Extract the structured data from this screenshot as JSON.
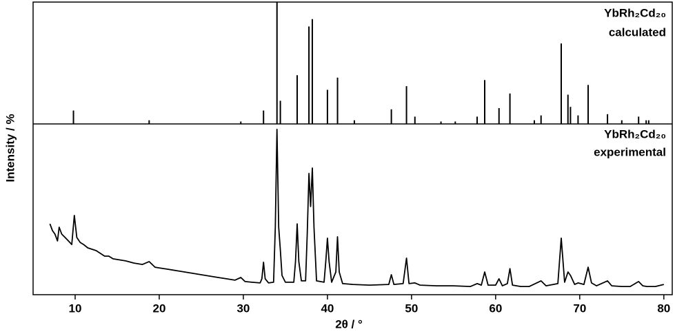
{
  "chart_data": [
    {
      "type": "stem",
      "ylabel": "Intensity / %",
      "annotation": [
        "YbRh₂Cd₂₀",
        "calculated"
      ],
      "color": "#000000",
      "xlim": [
        5,
        81
      ],
      "ylim": [
        0,
        100
      ],
      "x": [
        9.8,
        18.8,
        29.7,
        32.4,
        34.0,
        34.4,
        36.4,
        37.8,
        38.2,
        40.0,
        41.2,
        43.2,
        47.6,
        49.4,
        50.4,
        53.5,
        55.2,
        57.8,
        58.7,
        60.4,
        61.7,
        64.6,
        65.4,
        67.8,
        68.6,
        68.9,
        69.8,
        71.0,
        73.3,
        75.0,
        77.0,
        77.9,
        78.2
      ],
      "values": [
        11,
        3,
        2,
        11,
        100,
        19,
        40,
        80,
        86,
        28,
        38,
        3,
        12,
        31,
        6,
        2,
        2,
        6,
        36,
        13,
        25,
        3,
        7,
        66,
        24,
        14,
        7,
        32,
        8,
        3,
        6,
        3,
        3
      ]
    },
    {
      "type": "line",
      "xlabel": "2θ / °",
      "annotation": [
        "YbRh₂Cd₂₀",
        "experimental"
      ],
      "color": "#000000",
      "xlim": [
        5,
        81
      ],
      "ylim": [
        0,
        100
      ],
      "xticks": [
        10,
        20,
        30,
        40,
        50,
        60,
        70,
        80
      ],
      "x": [
        7.0,
        7.3,
        7.6,
        7.9,
        8.1,
        8.4,
        8.8,
        9.2,
        9.6,
        9.9,
        10.2,
        10.6,
        11.0,
        11.5,
        12,
        12.5,
        13,
        13.5,
        14,
        14.5,
        15,
        16,
        17,
        18,
        18.8,
        19.5,
        20,
        21,
        22,
        23,
        24,
        25,
        26,
        27,
        28,
        29,
        29.7,
        30.2,
        31,
        32,
        32.2,
        32.4,
        32.6,
        33.0,
        33.6,
        33.8,
        34.0,
        34.2,
        34.4,
        34.6,
        35.0,
        36.0,
        36.2,
        36.4,
        36.6,
        36.9,
        37.4,
        37.6,
        37.8,
        38.0,
        38.2,
        38.4,
        38.7,
        39.6,
        39.8,
        40.0,
        40.2,
        40.5,
        41.0,
        41.2,
        41.4,
        41.8,
        43,
        45,
        47.3,
        47.6,
        47.9,
        49.0,
        49.4,
        49.7,
        50.4,
        51,
        53,
        55,
        57,
        57.8,
        58.3,
        58.7,
        59.1,
        60.0,
        60.4,
        60.8,
        61.4,
        61.7,
        62.0,
        63,
        64,
        65.4,
        66,
        67.4,
        67.8,
        68.2,
        68.6,
        68.9,
        69.4,
        69.8,
        70.5,
        71.0,
        71.4,
        72,
        73.3,
        73.8,
        75,
        76,
        77.0,
        77.5,
        78,
        79,
        80
      ],
      "values": [
        41.5,
        37.5,
        35.5,
        31.5,
        39.5,
        35.5,
        33.5,
        31.5,
        29.4,
        46.4,
        33.5,
        30.6,
        29.4,
        27.4,
        26.6,
        25.8,
        24.2,
        22.6,
        22.6,
        21,
        20.6,
        19.8,
        18.5,
        17.7,
        19.4,
        16.1,
        15.7,
        14.9,
        14.1,
        13.3,
        12.5,
        11.7,
        10.9,
        10.1,
        9.3,
        8.5,
        10.1,
        7.7,
        7.3,
        6.9,
        9.3,
        19,
        9.3,
        6.9,
        7.3,
        39.5,
        96.8,
        39.5,
        26.2,
        11.3,
        7.3,
        7.3,
        19.4,
        41.5,
        19.4,
        8.1,
        8.1,
        35.5,
        71,
        51.6,
        74.2,
        39.5,
        8.1,
        7.3,
        19.4,
        33.1,
        19.4,
        7.3,
        13.3,
        33.9,
        13.3,
        6.5,
        6.0,
        5.6,
        6,
        11.7,
        6,
        6.5,
        21.4,
        6.5,
        6.9,
        5.6,
        5.2,
        5.2,
        4.8,
        6.5,
        5.6,
        13.3,
        5.6,
        5.6,
        9.3,
        5.2,
        6.5,
        15.3,
        5.6,
        4.8,
        4.8,
        8.1,
        5.2,
        6.5,
        33.1,
        7.3,
        13.3,
        11.3,
        6,
        6.9,
        6,
        16.1,
        6.9,
        5.2,
        8.1,
        5.2,
        4.8,
        4.8,
        7.7,
        5.2,
        4.8,
        4.8,
        6.0
      ]
    }
  ]
}
